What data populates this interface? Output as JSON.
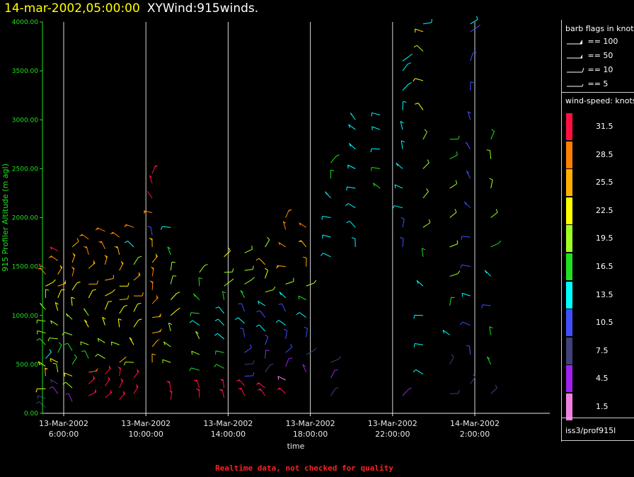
{
  "header": {
    "date": "14-mar-2002,05:00:00",
    "title": "XYWind:915winds."
  },
  "legend": {
    "flags_title": "barb flags in knots",
    "flags": [
      {
        "label": "== 100"
      },
      {
        "label": "== 50"
      },
      {
        "label": "== 10"
      },
      {
        "label": "== 5"
      }
    ],
    "speed_title": "wind-speed: knots",
    "speed_levels": [
      {
        "label": "31.5",
        "color": "#ff1040"
      },
      {
        "label": "28.5",
        "color": "#ff8000"
      },
      {
        "label": "25.5",
        "color": "#ffb000"
      },
      {
        "label": "22.5",
        "color": "#ffff00"
      },
      {
        "label": "19.5",
        "color": "#a0ff20"
      },
      {
        "label": "16.5",
        "color": "#20e020"
      },
      {
        "label": "13.5",
        "color": "#00ffff"
      },
      {
        "label": "10.5",
        "color": "#4050ff"
      },
      {
        "label": "7.5",
        "color": "#40407a"
      },
      {
        "label": "4.5",
        "color": "#a020f0"
      },
      {
        "label": "1.5",
        "color": "#f080e0"
      }
    ],
    "source": "iss3/prof915l"
  },
  "footer": {
    "note": "Realtime data, not checked for quality"
  },
  "chart_data": {
    "type": "scatter",
    "title": "14-mar-2002,05:00:00 XYWind:915winds.",
    "xlabel": "time",
    "ylabel": "915 Profiler Altitude (m agl)",
    "ylim": [
      0,
      4000
    ],
    "xlim_hours": [
      4.75,
      5.0
    ],
    "y_ticks": [
      "0.00",
      "500.00",
      "1000.00",
      "1500.00",
      "2000.00",
      "2500.00",
      "3000.00",
      "3500.00",
      "4000.00"
    ],
    "x_ticks": [
      {
        "date": "13-Mar-2002",
        "time": "6:00:00"
      },
      {
        "date": "13-Mar-2002",
        "time": "10:00:00"
      },
      {
        "date": "13-Mar-2002",
        "time": "14:00:00"
      },
      {
        "date": "13-Mar-2002",
        "time": "18:00:00"
      },
      {
        "date": "13-Mar-2002",
        "time": "22:00:00"
      },
      {
        "date": "14-Mar-2002",
        "time": "2:00:00"
      }
    ],
    "vertical_grid": true,
    "legend_position": "right",
    "series": [
      {
        "t": 4.9,
        "levels": [
          [
            60,
            6
          ],
          [
            150,
            8
          ],
          [
            250,
            22
          ],
          [
            380,
            25
          ],
          [
            480,
            22
          ],
          [
            560,
            14
          ],
          [
            700,
            17
          ],
          [
            820,
            19
          ],
          [
            940,
            18
          ],
          [
            1060,
            19
          ],
          [
            1180,
            20
          ],
          [
            1300,
            22
          ],
          [
            1420,
            28
          ],
          [
            1480,
            31
          ]
        ]
      },
      {
        "t": 5.5,
        "levels": [
          [
            200,
            5
          ],
          [
            300,
            8
          ],
          [
            420,
            18
          ],
          [
            520,
            22
          ],
          [
            620,
            15
          ],
          [
            760,
            19
          ],
          [
            900,
            20
          ],
          [
            1050,
            21
          ],
          [
            1180,
            22
          ],
          [
            1300,
            25
          ],
          [
            1420,
            26
          ],
          [
            1560,
            29
          ],
          [
            1660,
            31
          ]
        ]
      },
      {
        "t": 6.2,
        "levels": [
          [
            120,
            4
          ],
          [
            260,
            20
          ],
          [
            380,
            22
          ],
          [
            500,
            15
          ],
          [
            640,
            17
          ],
          [
            800,
            18
          ],
          [
            960,
            20
          ],
          [
            1100,
            21
          ],
          [
            1260,
            22
          ],
          [
            1400,
            27
          ],
          [
            1540,
            26
          ],
          [
            1700,
            24
          ]
        ]
      },
      {
        "t": 7.0,
        "levels": [
          [
            180,
            31
          ],
          [
            300,
            31
          ],
          [
            420,
            28
          ],
          [
            560,
            17
          ],
          [
            700,
            20
          ],
          [
            880,
            21
          ],
          [
            1000,
            20
          ],
          [
            1180,
            22
          ],
          [
            1320,
            24
          ],
          [
            1480,
            25
          ],
          [
            1620,
            27
          ],
          [
            1780,
            28
          ]
        ]
      },
      {
        "t": 7.8,
        "levels": [
          [
            160,
            31
          ],
          [
            280,
            31
          ],
          [
            400,
            30
          ],
          [
            560,
            18
          ],
          [
            720,
            20
          ],
          [
            900,
            21
          ],
          [
            1060,
            22
          ],
          [
            1200,
            23
          ],
          [
            1360,
            24
          ],
          [
            1520,
            26
          ],
          [
            1680,
            27
          ],
          [
            1860,
            28
          ]
        ]
      },
      {
        "t": 8.5,
        "levels": [
          [
            140,
            31
          ],
          [
            260,
            31
          ],
          [
            380,
            31
          ],
          [
            520,
            25
          ],
          [
            700,
            19
          ],
          [
            880,
            21
          ],
          [
            1020,
            22
          ],
          [
            1160,
            24
          ],
          [
            1300,
            23
          ],
          [
            1460,
            25
          ],
          [
            1620,
            26
          ],
          [
            1800,
            27
          ]
        ]
      },
      {
        "t": 9.2,
        "levels": [
          [
            200,
            31
          ],
          [
            360,
            30
          ],
          [
            520,
            19
          ],
          [
            700,
            21
          ],
          [
            880,
            23
          ],
          [
            1040,
            22
          ],
          [
            1200,
            24
          ],
          [
            1360,
            25
          ],
          [
            1520,
            20
          ],
          [
            1700,
            12
          ],
          [
            1900,
            28
          ]
        ]
      },
      {
        "t": 10.1,
        "levels": [
          [
            520,
            24
          ],
          [
            680,
            25
          ],
          [
            820,
            26
          ],
          [
            980,
            26
          ],
          [
            1120,
            27
          ],
          [
            1260,
            28
          ],
          [
            1400,
            27
          ],
          [
            1540,
            25
          ],
          [
            1700,
            26
          ],
          [
            1820,
            10
          ],
          [
            2050,
            29
          ],
          [
            2200,
            30
          ],
          [
            2350,
            30
          ],
          [
            2450,
            31
          ]
        ]
      },
      {
        "t": 11.0,
        "levels": [
          [
            140,
            31
          ],
          [
            240,
            31
          ],
          [
            520,
            19
          ],
          [
            680,
            19
          ],
          [
            840,
            20
          ],
          [
            1000,
            22
          ],
          [
            1160,
            21
          ],
          [
            1320,
            19
          ],
          [
            1460,
            18
          ],
          [
            1620,
            16
          ],
          [
            1900,
            12
          ]
        ]
      },
      {
        "t": 12.4,
        "levels": [
          [
            160,
            31
          ],
          [
            260,
            31
          ],
          [
            440,
            17
          ],
          [
            600,
            18
          ],
          [
            760,
            19
          ],
          [
            900,
            14
          ],
          [
            1020,
            15
          ],
          [
            1160,
            16
          ],
          [
            1300,
            17
          ],
          [
            1440,
            18
          ]
        ]
      },
      {
        "t": 13.6,
        "levels": [
          [
            160,
            31
          ],
          [
            260,
            30
          ],
          [
            460,
            16
          ],
          [
            620,
            17
          ],
          [
            760,
            14
          ],
          [
            900,
            13
          ],
          [
            1020,
            12
          ],
          [
            1160,
            17
          ],
          [
            1300,
            19
          ],
          [
            1440,
            20
          ],
          [
            1600,
            21
          ]
        ]
      },
      {
        "t": 14.6,
        "levels": [
          [
            180,
            31
          ],
          [
            280,
            31
          ],
          [
            380,
            9
          ],
          [
            500,
            8
          ],
          [
            620,
            9
          ],
          [
            780,
            11
          ],
          [
            920,
            12
          ],
          [
            1040,
            10
          ],
          [
            1180,
            15
          ],
          [
            1320,
            18
          ],
          [
            1460,
            19
          ],
          [
            1640,
            19
          ]
        ]
      },
      {
        "t": 15.6,
        "levels": [
          [
            180,
            31
          ],
          [
            260,
            31
          ],
          [
            420,
            6
          ],
          [
            560,
            4
          ],
          [
            700,
            10
          ],
          [
            840,
            12
          ],
          [
            980,
            11
          ],
          [
            1100,
            14
          ],
          [
            1240,
            19
          ],
          [
            1380,
            22
          ],
          [
            1520,
            24
          ],
          [
            1700,
            20
          ]
        ]
      },
      {
        "t": 16.6,
        "levels": [
          [
            200,
            31
          ],
          [
            340,
            2
          ],
          [
            480,
            5
          ],
          [
            620,
            9
          ],
          [
            760,
            10
          ],
          [
            900,
            12
          ],
          [
            1040,
            10
          ],
          [
            1180,
            14
          ],
          [
            1320,
            20
          ],
          [
            1500,
            26
          ],
          [
            1700,
            27
          ],
          [
            1880,
            28
          ],
          [
            2000,
            29
          ]
        ]
      },
      {
        "t": 17.6,
        "levels": [
          [
            420,
            4
          ],
          [
            600,
            7
          ],
          [
            780,
            11
          ],
          [
            980,
            13
          ],
          [
            1160,
            15
          ],
          [
            1300,
            20
          ],
          [
            1500,
            24
          ],
          [
            1700,
            25
          ],
          [
            1900,
            28
          ]
        ]
      },
      {
        "t": 18.8,
        "levels": [
          [
            180,
            6
          ],
          [
            360,
            5
          ],
          [
            520,
            6
          ],
          [
            1600,
            13
          ],
          [
            1800,
            14
          ],
          [
            2000,
            13
          ],
          [
            2200,
            14
          ],
          [
            2400,
            15
          ],
          [
            2560,
            16
          ]
        ]
      },
      {
        "t": 20.0,
        "levels": [
          [
            1700,
            12
          ],
          [
            1900,
            13
          ],
          [
            2100,
            13
          ],
          [
            2300,
            14
          ],
          [
            2500,
            14
          ],
          [
            2700,
            14
          ],
          [
            2900,
            13
          ],
          [
            3000,
            13
          ]
        ]
      },
      {
        "t": 21.2,
        "levels": [
          [
            2300,
            17
          ],
          [
            2500,
            15
          ],
          [
            2700,
            14
          ],
          [
            2900,
            14
          ],
          [
            3050,
            13
          ]
        ]
      },
      {
        "t": 22.3,
        "levels": [
          [
            180,
            5
          ],
          [
            1700,
            10
          ],
          [
            1900,
            9
          ],
          [
            2100,
            12
          ],
          [
            2300,
            13
          ],
          [
            2500,
            13
          ],
          [
            2700,
            14
          ],
          [
            2900,
            13
          ],
          [
            3100,
            13
          ],
          [
            3300,
            14
          ],
          [
            3500,
            13
          ],
          [
            3600,
            13
          ]
        ]
      },
      {
        "t": 23.3,
        "levels": [
          [
            400,
            13
          ],
          [
            700,
            14
          ],
          [
            1000,
            13
          ],
          [
            1300,
            14
          ],
          [
            1600,
            15
          ],
          [
            1900,
            20
          ],
          [
            2200,
            20
          ],
          [
            2500,
            19
          ],
          [
            2800,
            19
          ],
          [
            3100,
            21
          ],
          [
            3400,
            22
          ],
          [
            3700,
            20
          ],
          [
            3900,
            22
          ],
          [
            3980,
            13
          ]
        ]
      },
      {
        "t": 24.6,
        "levels": [
          [
            200,
            6
          ],
          [
            500,
            8
          ],
          [
            800,
            14
          ],
          [
            1100,
            16
          ],
          [
            1400,
            18
          ],
          [
            1700,
            19
          ],
          [
            2000,
            19
          ],
          [
            2300,
            18
          ],
          [
            2600,
            17
          ],
          [
            2800,
            15
          ]
        ]
      },
      {
        "t": 25.6,
        "levels": [
          [
            300,
            8
          ],
          [
            600,
            9
          ],
          [
            900,
            11
          ],
          [
            1200,
            12
          ],
          [
            1500,
            10
          ],
          [
            1800,
            10
          ],
          [
            2100,
            11
          ],
          [
            2400,
            11
          ],
          [
            2700,
            10
          ],
          [
            3000,
            10
          ],
          [
            3300,
            10
          ],
          [
            3600,
            10
          ],
          [
            3900,
            11
          ],
          [
            3980,
            13
          ]
        ]
      },
      {
        "t": 26.6,
        "levels": [
          [
            200,
            7
          ],
          [
            500,
            15
          ],
          [
            800,
            15
          ],
          [
            1100,
            11
          ],
          [
            1400,
            12
          ],
          [
            1700,
            16
          ],
          [
            2000,
            18
          ],
          [
            2300,
            19
          ],
          [
            2600,
            19
          ],
          [
            2800,
            17
          ]
        ]
      }
    ]
  }
}
